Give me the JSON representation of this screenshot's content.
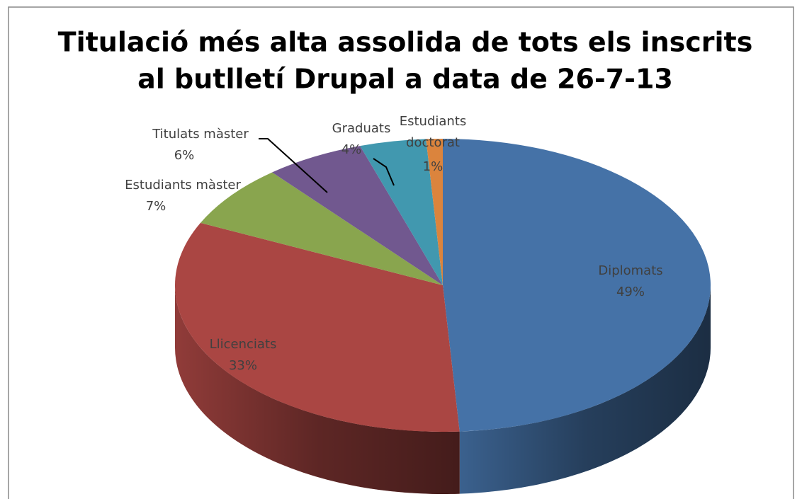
{
  "chart_data": {
    "type": "pie3d",
    "title": [
      "Titulació més alta assolida de tots els inscrits",
      "al butlletí Drupal a data de 26-7-13"
    ],
    "categories": [
      "Diplomats",
      "Llicenciats",
      "Estudiants màster",
      "Titulats màster",
      "Graduats",
      "Estudiants doctorat"
    ],
    "values": [
      49,
      33,
      7,
      6,
      4,
      1
    ],
    "value_labels": [
      "49%",
      "33%",
      "7%",
      "6%",
      "4%",
      "1%"
    ],
    "colors": [
      "#4572a7",
      "#aa4643",
      "#89a54e",
      "#71588f",
      "#4198af",
      "#db843d"
    ]
  }
}
